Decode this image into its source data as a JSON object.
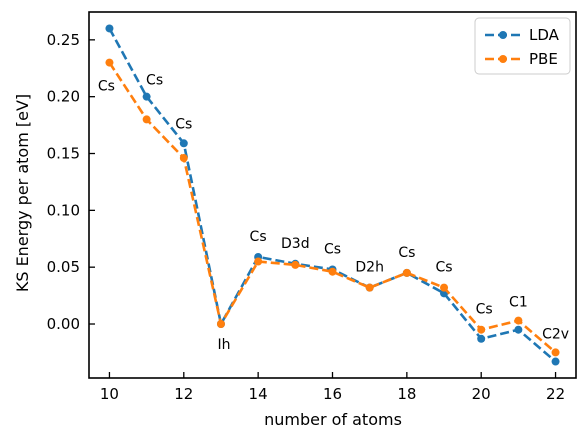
{
  "chart_data": {
    "type": "line",
    "xlabel": "number of atoms",
    "ylabel": "KS Energy per atom [eV]",
    "xlim": [
      9.45,
      22.55
    ],
    "ylim": [
      -0.0475,
      0.2745
    ],
    "x": [
      10,
      11,
      12,
      13,
      14,
      15,
      16,
      17,
      18,
      19,
      20,
      21,
      22
    ],
    "xticks": [
      "10",
      "12",
      "14",
      "16",
      "18",
      "20",
      "22"
    ],
    "yticks": [
      "0.00",
      "0.05",
      "0.10",
      "0.15",
      "0.20",
      "0.25"
    ],
    "grid": false,
    "legend_position": "top-right",
    "series": [
      {
        "name": "LDA",
        "color": "#1f77b4",
        "values": [
          0.26,
          0.2,
          0.159,
          0.0,
          0.059,
          0.053,
          0.048,
          0.032,
          0.045,
          0.027,
          -0.013,
          -0.005,
          -0.033
        ]
      },
      {
        "name": "PBE",
        "color": "#ff7f0e",
        "values": [
          0.23,
          0.18,
          0.146,
          0.0,
          0.055,
          0.052,
          0.046,
          0.032,
          0.045,
          0.032,
          -0.005,
          0.003,
          -0.025
        ]
      }
    ],
    "annotations": [
      {
        "text": "Cs",
        "x": 10,
        "y": 0.23
      },
      {
        "text": "Cs",
        "x": 11,
        "y": 0.2
      },
      {
        "text": "Cs",
        "x": 12,
        "y": 0.159
      },
      {
        "text": "Ih",
        "x": 13,
        "y": 0.0
      },
      {
        "text": "Cs",
        "x": 14,
        "y": 0.059
      },
      {
        "text": "D3d",
        "x": 15,
        "y": 0.053
      },
      {
        "text": "Cs",
        "x": 16,
        "y": 0.048
      },
      {
        "text": "D2h",
        "x": 17,
        "y": 0.032
      },
      {
        "text": "Cs",
        "x": 18,
        "y": 0.045
      },
      {
        "text": "Cs",
        "x": 19,
        "y": 0.032
      },
      {
        "text": "Cs",
        "x": 20,
        "y": -0.005
      },
      {
        "text": "C1",
        "x": 21,
        "y": 0.003
      },
      {
        "text": "C2v",
        "x": 22,
        "y": -0.025
      }
    ]
  }
}
